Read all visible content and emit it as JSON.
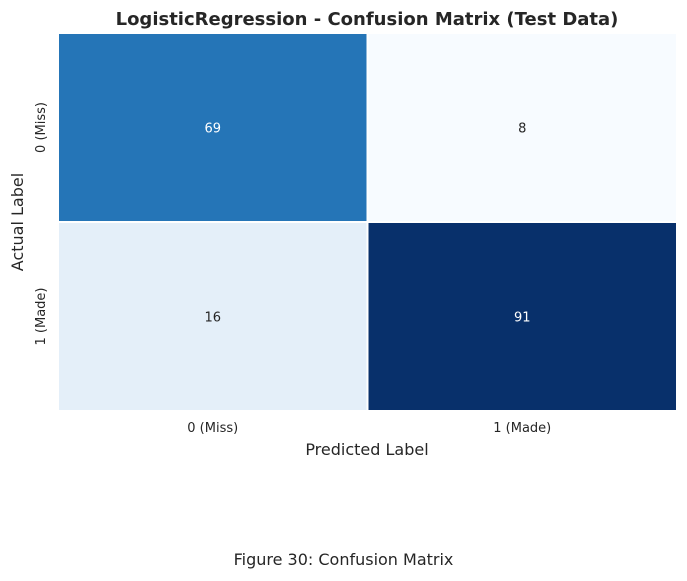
{
  "chart_data": {
    "type": "heatmap",
    "title": "LogisticRegression - Confusion Matrix (Test Data)",
    "xlabel": "Predicted Label",
    "ylabel": "Actual Label",
    "x_categories": [
      "0 (Miss)",
      "1 (Made)"
    ],
    "y_categories": [
      "0 (Miss)",
      "1 (Made)"
    ],
    "values": [
      [
        69,
        8
      ],
      [
        16,
        91
      ]
    ],
    "colormap": "Blues",
    "colorbar": false
  },
  "caption": "Figure 30: Confusion Matrix"
}
